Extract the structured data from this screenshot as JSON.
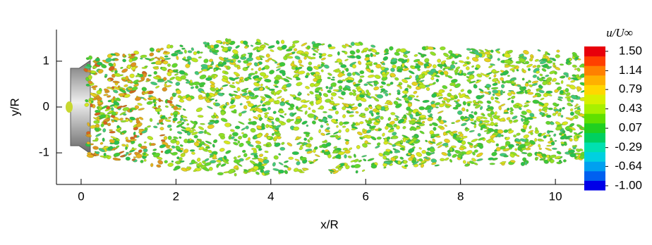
{
  "chart_data": {
    "type": "field",
    "xlabel": "x/R",
    "ylabel": "y/R",
    "xlim": [
      -0.52,
      11.01
    ],
    "ylim": [
      -1.69,
      1.69
    ],
    "xticks": [
      0,
      2,
      4,
      6,
      8,
      10
    ],
    "yticks": [
      -1,
      0,
      1
    ],
    "colorbar": {
      "title": "u/U∞",
      "lim": [
        -1.08,
        1.59
      ],
      "ticks": [
        {
          "value": 1.5,
          "label": "1.50"
        },
        1.14,
        0.79,
        0.43,
        0.07,
        -0.29,
        -0.64,
        {
          "value": -1.0,
          "label": "-1.00"
        }
      ],
      "colors": [
        "#0000e8",
        "#0060f0",
        "#00a0f0",
        "#00d0e0",
        "#00e0b0",
        "#00d060",
        "#20d020",
        "#60e000",
        "#a8f000",
        "#d8f000",
        "#ffd700",
        "#ffb000",
        "#ff8000",
        "#ff4000",
        "#e8000b"
      ]
    }
  }
}
